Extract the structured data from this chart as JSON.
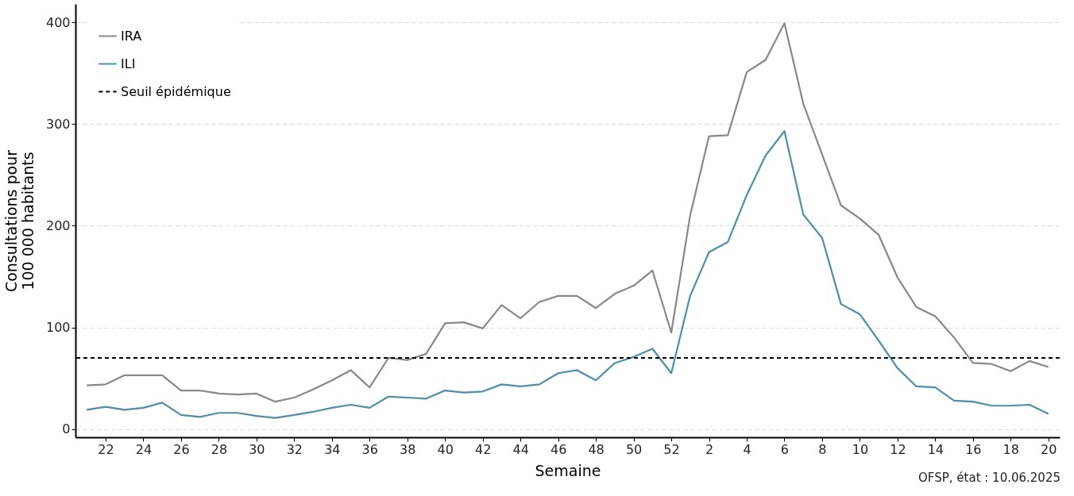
{
  "chart_data": {
    "type": "line",
    "xlabel": "Semaine",
    "ylabel": "Consultations pour\n100 000 habitants",
    "categories": [
      null,
      "22",
      null,
      "24",
      null,
      "26",
      null,
      "28",
      null,
      "30",
      null,
      "32",
      null,
      "34",
      null,
      "36",
      null,
      "38",
      null,
      "40",
      null,
      "42",
      null,
      "44",
      null,
      "46",
      null,
      "48",
      null,
      "50",
      null,
      "52",
      null,
      "2",
      null,
      "4",
      null,
      "6",
      null,
      "8",
      null,
      "10",
      null,
      "12",
      null,
      "14",
      null,
      "16",
      null,
      "18",
      null,
      "20"
    ],
    "series": [
      {
        "name": "IRA",
        "color": "#888888",
        "values": [
          43,
          44,
          53,
          53,
          53,
          38,
          38,
          35,
          34,
          35,
          27,
          31,
          39,
          48,
          58,
          41,
          70,
          68,
          74,
          104,
          105,
          99,
          122,
          109,
          125,
          131,
          131,
          119,
          133,
          141,
          156,
          95,
          210,
          288,
          289,
          351,
          363,
          399,
          320,
          270,
          220,
          207,
          191,
          149,
          120,
          111,
          90,
          65,
          64,
          57,
          67,
          61
        ]
      },
      {
        "name": "ILI",
        "color": "#4a90a8",
        "values": [
          19,
          22,
          19,
          21,
          26,
          14,
          12,
          16,
          16,
          13,
          11,
          14,
          17,
          21,
          24,
          21,
          32,
          31,
          30,
          38,
          36,
          37,
          44,
          42,
          44,
          55,
          58,
          48,
          65,
          71,
          79,
          55,
          131,
          174,
          184,
          230,
          269,
          293,
          211,
          188,
          123,
          113,
          87,
          60,
          42,
          41,
          28,
          27,
          23,
          23,
          24,
          15
        ]
      }
    ],
    "ref_lines": [
      {
        "axis": "y",
        "value": 70,
        "label": "Seuil épidémique",
        "color": "#000000",
        "line_style": "dashed"
      }
    ],
    "ylim": [
      -8,
      418
    ],
    "yticks": [
      0,
      100,
      200,
      300,
      400
    ],
    "grid": "y",
    "legend": "top left",
    "marker": "none",
    "line_style": "solid",
    "annotations": [
      "OFSP, état : 10.06.2025"
    ]
  }
}
